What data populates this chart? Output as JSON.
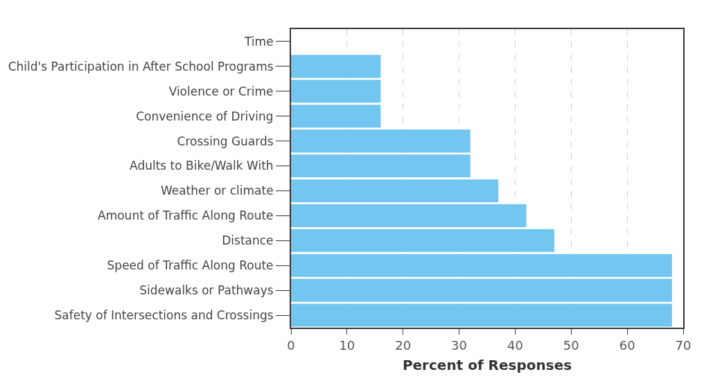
{
  "chart_data": {
    "type": "bar",
    "orientation": "horizontal",
    "xlabel": "Percent of Responses",
    "categories": [
      "Time",
      "Child's Participation in After School Programs",
      "Violence or Crime",
      "Convenience of Driving",
      "Crossing Guards",
      "Adults to Bike/Walk With",
      "Weather or climate",
      "Amount of Traffic Along Route",
      "Distance",
      "Speed of Traffic Along Route",
      "Sidewalks or Pathways",
      "Safety of Intersections and Crossings"
    ],
    "values": [
      0,
      16,
      16,
      16,
      32,
      32,
      37,
      42,
      47,
      68,
      68,
      68
    ],
    "color": "#72c6f0",
    "xlim": [
      0,
      70
    ],
    "xticks": [
      0,
      10,
      20,
      30,
      40,
      50,
      60,
      70
    ],
    "grid": "x",
    "legend": false
  }
}
